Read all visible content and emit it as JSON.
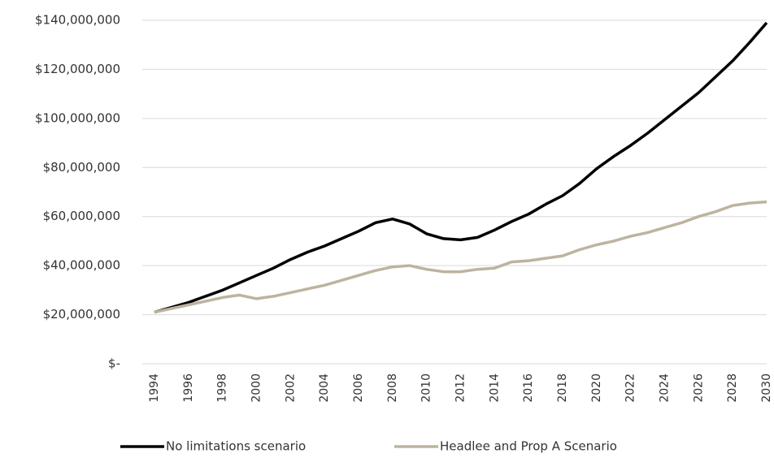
{
  "chart_data": {
    "type": "line",
    "categories": [
      "1994",
      null,
      "1996",
      null,
      "1998",
      null,
      "2000",
      null,
      "2002",
      null,
      "2004",
      null,
      "2006",
      null,
      "2008",
      null,
      "2010",
      null,
      "2012",
      null,
      "2014",
      null,
      "2016",
      null,
      "2018",
      null,
      "2020",
      null,
      "2022",
      null,
      "2024",
      null,
      "2026",
      null,
      "2028",
      null,
      "2030"
    ],
    "series": [
      {
        "name": "No limitations scenario",
        "color": "#000000",
        "values": [
          21000000,
          23000000,
          25000000,
          27500000,
          30000000,
          33000000,
          36000000,
          39000000,
          42500000,
          45500000,
          48000000,
          51000000,
          54000000,
          57500000,
          59000000,
          57000000,
          53000000,
          51000000,
          50500000,
          51500000,
          54500000,
          58000000,
          61000000,
          65000000,
          68500000,
          73500000,
          79500000,
          84500000,
          89000000,
          94000000,
          99500000,
          105000000,
          110500000,
          117000000,
          123500000,
          131000000,
          139000000
        ]
      },
      {
        "name": "Headlee and Prop A Scenario",
        "color": "#bdb3a0",
        "values": [
          21000000,
          22500000,
          24000000,
          25500000,
          27000000,
          28000000,
          26500000,
          27500000,
          29000000,
          30500000,
          32000000,
          34000000,
          36000000,
          38000000,
          39500000,
          40000000,
          38500000,
          37500000,
          37500000,
          38500000,
          39000000,
          41500000,
          42000000,
          43000000,
          44000000,
          46500000,
          48500000,
          50000000,
          52000000,
          53500000,
          55500000,
          57500000,
          60000000,
          62000000,
          64500000,
          65500000,
          66000000
        ]
      }
    ],
    "ylim": [
      0,
      140000000
    ],
    "yticks": [
      {
        "value": 0,
        "label": "$-"
      },
      {
        "value": 20000000,
        "label": "$20,000,000"
      },
      {
        "value": 40000000,
        "label": "$40,000,000"
      },
      {
        "value": 60000000,
        "label": "$60,000,000"
      },
      {
        "value": 80000000,
        "label": "$80,000,000"
      },
      {
        "value": 100000000,
        "label": "$100,000,000"
      },
      {
        "value": 120000000,
        "label": "$120,000,000"
      },
      {
        "value": 140000000,
        "label": "$140,000,000"
      }
    ],
    "grid": true,
    "legend": "bottom"
  }
}
